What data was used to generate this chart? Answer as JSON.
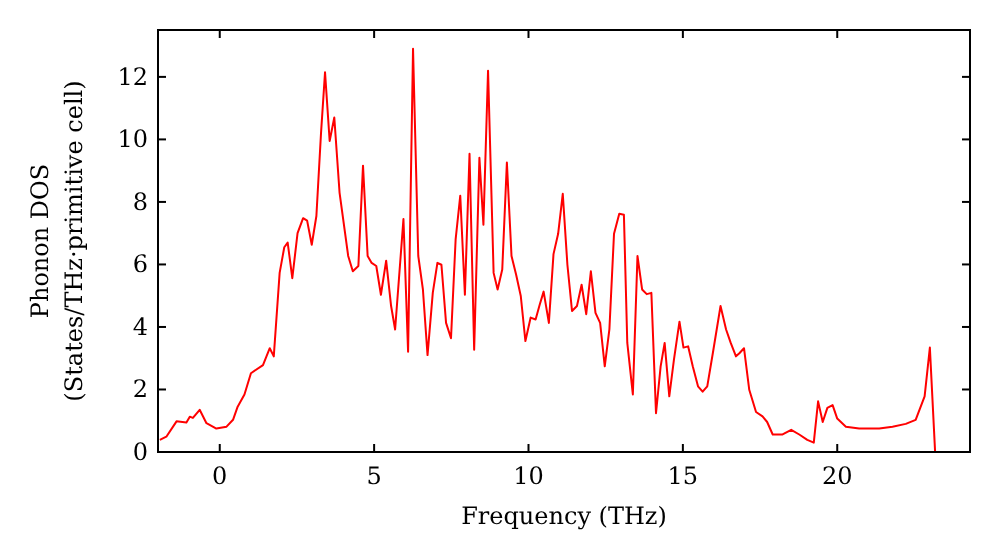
{
  "chart_data": {
    "type": "line",
    "xlabel": "Frequency (THz)",
    "ylabel": "Phonon DOS\n(States/THz·primitive cell)",
    "xlim": [
      -2,
      24.3
    ],
    "ylim": [
      0,
      13.5
    ],
    "xticks": [
      0,
      5,
      10,
      15,
      20
    ],
    "yticks": [
      0,
      2,
      4,
      6,
      8,
      10,
      12
    ],
    "grid": false,
    "marker": "none",
    "line_style": "solid",
    "series": [
      {
        "color": "#ff0000",
        "x": [
          -1.94,
          -1.73,
          -1.4,
          -1.08,
          -0.97,
          -0.87,
          -0.65,
          -0.43,
          -0.11,
          0.22,
          0.43,
          0.58,
          0.8,
          1.01,
          1.4,
          1.62,
          1.75,
          1.94,
          2.09,
          2.2,
          2.35,
          2.52,
          2.7,
          2.83,
          2.98,
          3.13,
          3.28,
          3.41,
          3.56,
          3.71,
          3.88,
          4.16,
          4.31,
          4.49,
          4.64,
          4.79,
          4.92,
          5.07,
          5.22,
          5.39,
          5.55,
          5.68,
          5.95,
          6.1,
          6.26,
          6.43,
          6.58,
          6.73,
          6.9,
          7.05,
          7.18,
          7.33,
          7.49,
          7.64,
          7.79,
          7.94,
          8.09,
          8.24,
          8.41,
          8.54,
          8.69,
          8.87,
          9.0,
          9.15,
          9.3,
          9.45,
          9.6,
          9.75,
          9.9,
          10.07,
          10.23,
          10.36,
          10.49,
          10.66,
          10.81,
          10.96,
          11.11,
          11.26,
          11.41,
          11.57,
          11.72,
          11.87,
          12.02,
          12.17,
          12.32,
          12.47,
          12.62,
          12.77,
          12.94,
          13.09,
          13.2,
          13.38,
          13.53,
          13.68,
          13.83,
          13.98,
          14.13,
          14.28,
          14.41,
          14.56,
          14.71,
          14.89,
          15.02,
          15.17,
          15.32,
          15.49,
          15.64,
          15.79,
          15.97,
          16.22,
          16.4,
          16.55,
          16.72,
          16.83,
          16.98,
          17.15,
          17.37,
          17.58,
          17.73,
          17.91,
          18.23,
          18.51,
          18.77,
          19.03,
          19.24,
          19.38,
          19.53,
          19.68,
          19.85,
          20.0,
          20.28,
          20.71,
          21.36,
          21.79,
          22.22,
          22.54,
          22.83,
          23.0,
          23.17
        ],
        "values": [
          0.39,
          0.49,
          0.98,
          0.94,
          1.13,
          1.09,
          1.35,
          0.92,
          0.75,
          0.81,
          1.03,
          1.45,
          1.84,
          2.52,
          2.78,
          3.32,
          3.06,
          5.73,
          6.55,
          6.7,
          5.56,
          7.0,
          7.48,
          7.4,
          6.63,
          7.55,
          10.2,
          12.15,
          9.95,
          10.7,
          8.3,
          6.27,
          5.78,
          5.95,
          9.16,
          6.27,
          6.05,
          5.95,
          5.03,
          6.12,
          4.67,
          3.92,
          7.45,
          3.21,
          12.9,
          6.27,
          5.2,
          3.1,
          5.09,
          6.05,
          5.99,
          4.13,
          3.64,
          6.8,
          8.2,
          5.03,
          9.54,
          3.27,
          9.41,
          7.27,
          12.2,
          5.73,
          5.2,
          5.84,
          9.26,
          6.27,
          5.67,
          4.99,
          3.55,
          4.3,
          4.24,
          4.7,
          5.13,
          4.13,
          6.33,
          6.98,
          8.26,
          5.99,
          4.51,
          4.67,
          5.35,
          4.41,
          5.78,
          4.45,
          4.13,
          2.74,
          3.92,
          6.98,
          7.62,
          7.59,
          3.49,
          1.84,
          6.27,
          5.2,
          5.05,
          5.09,
          1.24,
          2.74,
          3.49,
          1.78,
          2.95,
          4.17,
          3.34,
          3.38,
          2.74,
          2.1,
          1.93,
          2.1,
          3.16,
          4.67,
          3.92,
          3.49,
          3.06,
          3.16,
          3.32,
          1.99,
          1.28,
          1.14,
          0.96,
          0.56,
          0.56,
          0.71,
          0.56,
          0.39,
          0.3,
          1.62,
          0.96,
          1.41,
          1.5,
          1.07,
          0.81,
          0.75,
          0.75,
          0.81,
          0.9,
          1.03,
          1.78,
          3.34,
          0
        ]
      }
    ]
  }
}
